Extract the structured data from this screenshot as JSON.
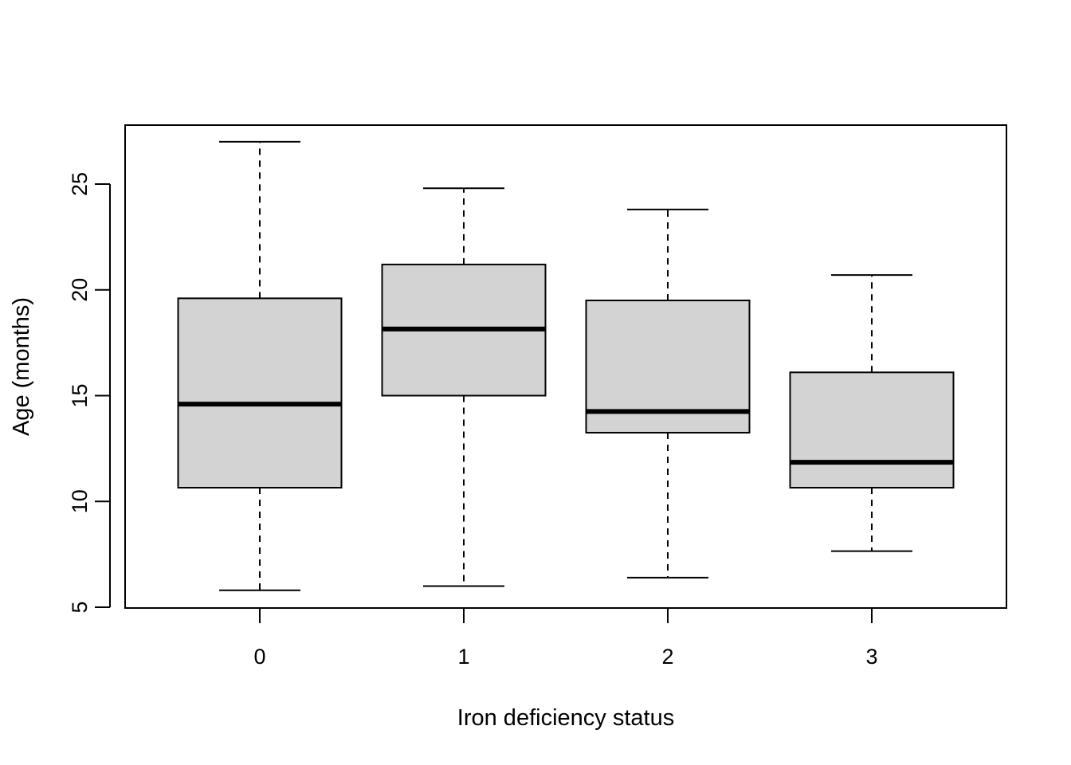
{
  "chart_data": {
    "type": "boxplot",
    "title": "",
    "xlabel": "Iron deficiency status",
    "ylabel": "Age (months)",
    "categories": [
      "0",
      "1",
      "2",
      "3"
    ],
    "ylim": [
      5,
      27.5
    ],
    "y_ticks": [
      5,
      10,
      15,
      20,
      25
    ],
    "y_tick_labels": [
      "5",
      "10",
      "15",
      "20",
      "25"
    ],
    "boxes": [
      {
        "category": "0",
        "whisker_low": 5.8,
        "q1": 10.65,
        "median": 14.6,
        "q3": 19.6,
        "whisker_high": 27.0
      },
      {
        "category": "1",
        "whisker_low": 6.0,
        "q1": 15.0,
        "median": 18.15,
        "q3": 21.2,
        "whisker_high": 24.8
      },
      {
        "category": "2",
        "whisker_low": 6.4,
        "q1": 13.25,
        "median": 14.25,
        "q3": 19.5,
        "whisker_high": 23.8
      },
      {
        "category": "3",
        "whisker_low": 7.65,
        "q1": 10.65,
        "median": 11.85,
        "q3": 16.1,
        "whisker_high": 20.7
      }
    ],
    "box_fill": "#d3d3d3",
    "line_color": "#000000",
    "grid": false,
    "legend": "none"
  }
}
